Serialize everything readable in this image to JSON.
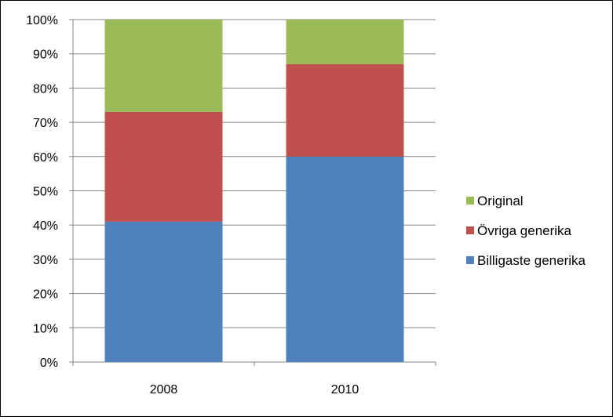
{
  "chart_data": {
    "type": "bar",
    "stacked": true,
    "percent": true,
    "categories": [
      "2008",
      "2010"
    ],
    "series": [
      {
        "name": "Billigaste generika",
        "values": [
          41,
          60
        ],
        "color": "#4F81BD"
      },
      {
        "name": "Övriga generika",
        "values": [
          32,
          27
        ],
        "color": "#C0504D"
      },
      {
        "name": "Original",
        "values": [
          27,
          13
        ],
        "color": "#9BBB59"
      }
    ],
    "ylim": [
      0,
      100
    ],
    "yticks": [
      "0%",
      "10%",
      "20%",
      "30%",
      "40%",
      "50%",
      "60%",
      "70%",
      "80%",
      "90%",
      "100%"
    ],
    "grid": true,
    "legend_position": "right",
    "legend_order": [
      "Original",
      "Övriga generika",
      "Billigaste generika"
    ]
  }
}
